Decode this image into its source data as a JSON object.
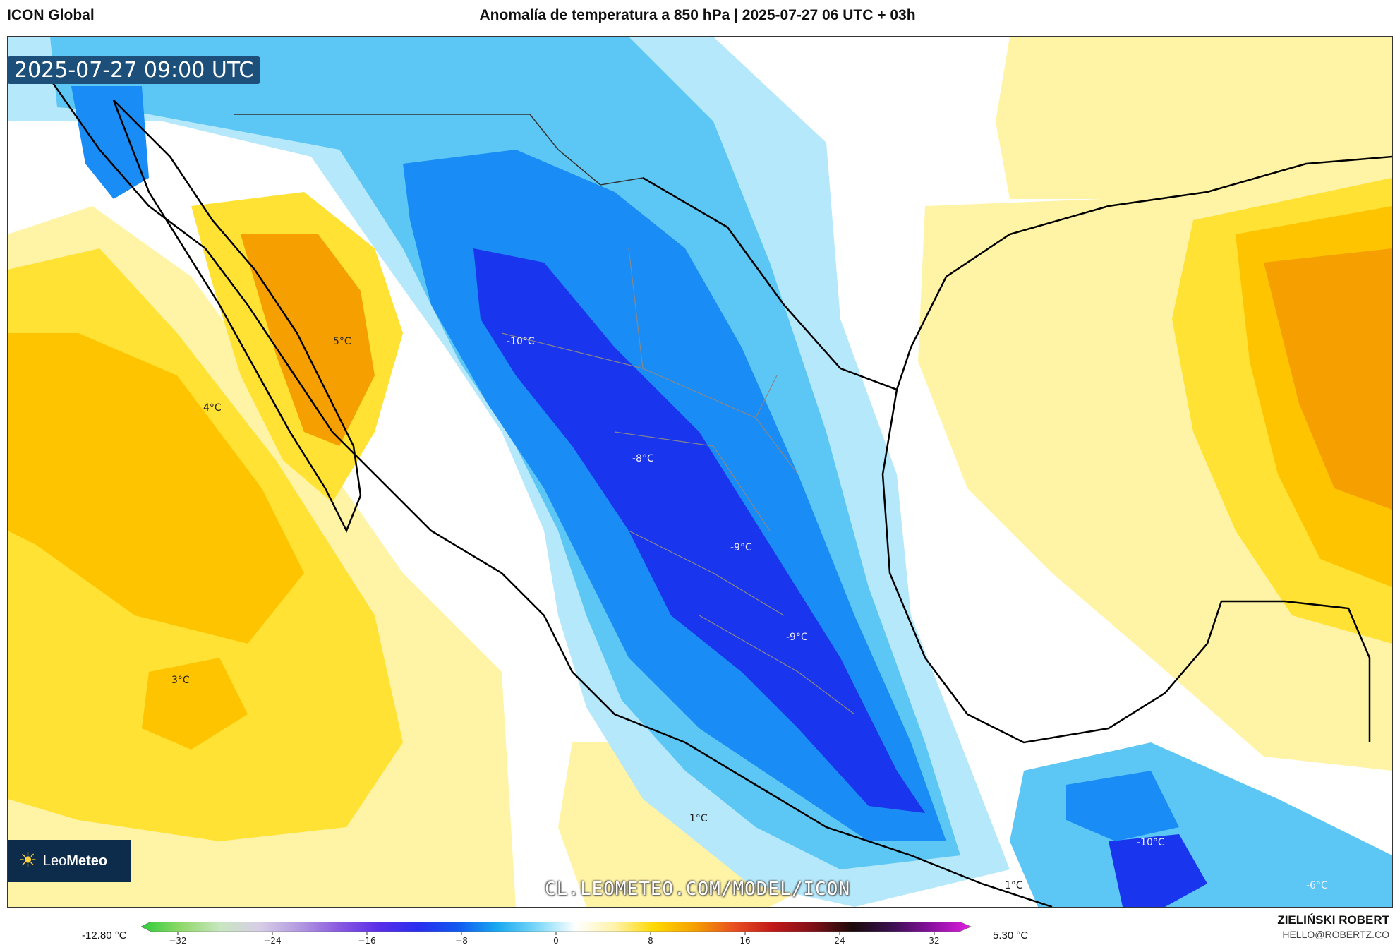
{
  "header": {
    "model": "ICON Global",
    "title": "Anomalía de temperatura a 850 hPa | 2025-07-27 06 UTC + 03h"
  },
  "valid_time": "2025-07-27 09:00 UTC",
  "logo": {
    "brand_light": "Leo",
    "brand_bold": "Meteo",
    "icon": "sun-icon"
  },
  "source_url": "CL.LEOMETEO.COM/MODEL/ICON",
  "labels": [
    {
      "text": "-10°C",
      "cold": true
    },
    {
      "text": "5°C",
      "cold": false
    },
    {
      "text": "4°C",
      "cold": false
    },
    {
      "text": "-8°C",
      "cold": true
    },
    {
      "text": "-9°C",
      "cold": true
    },
    {
      "text": "-9°C",
      "cold": true
    },
    {
      "text": "3°C",
      "cold": false
    },
    {
      "text": "1°C",
      "cold": false
    },
    {
      "text": "-10°C",
      "cold": true
    },
    {
      "text": "1°C",
      "cold": false
    },
    {
      "text": "-6°C",
      "cold": true
    }
  ],
  "colorbar": {
    "min_label": "-12.80 °C",
    "max_label": "5.30 °C",
    "ticks": [
      "−32",
      "−24",
      "−16",
      "−8",
      "0",
      "8",
      "16",
      "24",
      "32"
    ],
    "stops": [
      "#2ecc3a",
      "#8fd86a",
      "#c8e6c0",
      "#d7cde6",
      "#b39ae0",
      "#8a5ae0",
      "#5a2ee8",
      "#2a2ef0",
      "#1058f0",
      "#18a8f0",
      "#7ad8f8",
      "#ffffff",
      "#fff2a8",
      "#ffd800",
      "#f5a000",
      "#e85020",
      "#c01818",
      "#801018",
      "#1a0a0a",
      "#3a1050",
      "#8a10a0",
      "#e020e0"
    ]
  },
  "author": {
    "name": "ZIELIŃSKI ROBERT",
    "email": "HELLO@ROBERTZ.CO"
  },
  "palette": {
    "cold_deep": "#1a35ee",
    "cold_mid": "#1a8cf5",
    "cold_light": "#5cc7f5",
    "cold_pale": "#b5e8fb",
    "neutral": "#ffffff",
    "warm_pale": "#fff3a6",
    "warm_mid": "#ffe234",
    "warm_strong": "#ffc400",
    "warm_deep": "#f5a000"
  }
}
